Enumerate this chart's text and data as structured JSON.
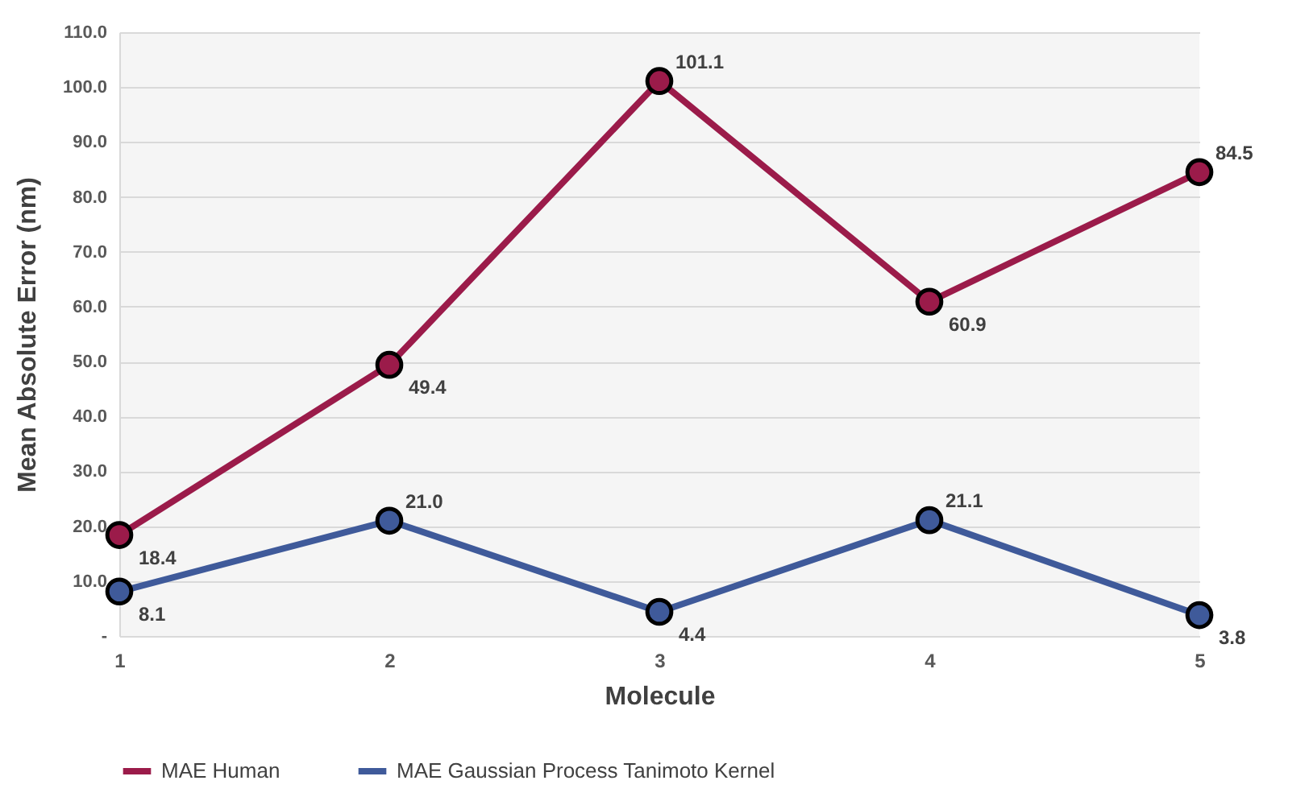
{
  "chart_data": {
    "type": "line",
    "xlabel": "Molecule",
    "ylabel": "Mean Absolute Error (nm)",
    "categories": [
      "1",
      "2",
      "3",
      "4",
      "5"
    ],
    "series": [
      {
        "name": "MAE Human",
        "color": "#9b1b4a",
        "values": [
          18.4,
          49.4,
          101.1,
          60.9,
          84.5
        ],
        "value_labels": [
          "18.4",
          "49.4",
          "101.1",
          "60.9",
          "84.5"
        ]
      },
      {
        "name": "MAE Gaussian Process Tanimoto Kernel",
        "color": "#3f5a9a",
        "values": [
          8.1,
          21.0,
          4.4,
          21.1,
          3.8
        ],
        "value_labels": [
          "8.1",
          "21.0",
          "4.4",
          "21.1",
          "3.8"
        ]
      }
    ],
    "ylim": [
      0,
      110
    ],
    "yticks": [
      {
        "value": 0,
        "label": "-"
      },
      {
        "value": 10,
        "label": "10.0"
      },
      {
        "value": 20,
        "label": "20.0"
      },
      {
        "value": 30,
        "label": "30.0"
      },
      {
        "value": 40,
        "label": "40.0"
      },
      {
        "value": 50,
        "label": "50.0"
      },
      {
        "value": 60,
        "label": "60.0"
      },
      {
        "value": 70,
        "label": "70.0"
      },
      {
        "value": 80,
        "label": "80.0"
      },
      {
        "value": 90,
        "label": "90.0"
      },
      {
        "value": 100,
        "label": "100.0"
      },
      {
        "value": 110,
        "label": "110.0"
      }
    ],
    "grid": "y",
    "legend": "bottom",
    "marker": "circle"
  }
}
